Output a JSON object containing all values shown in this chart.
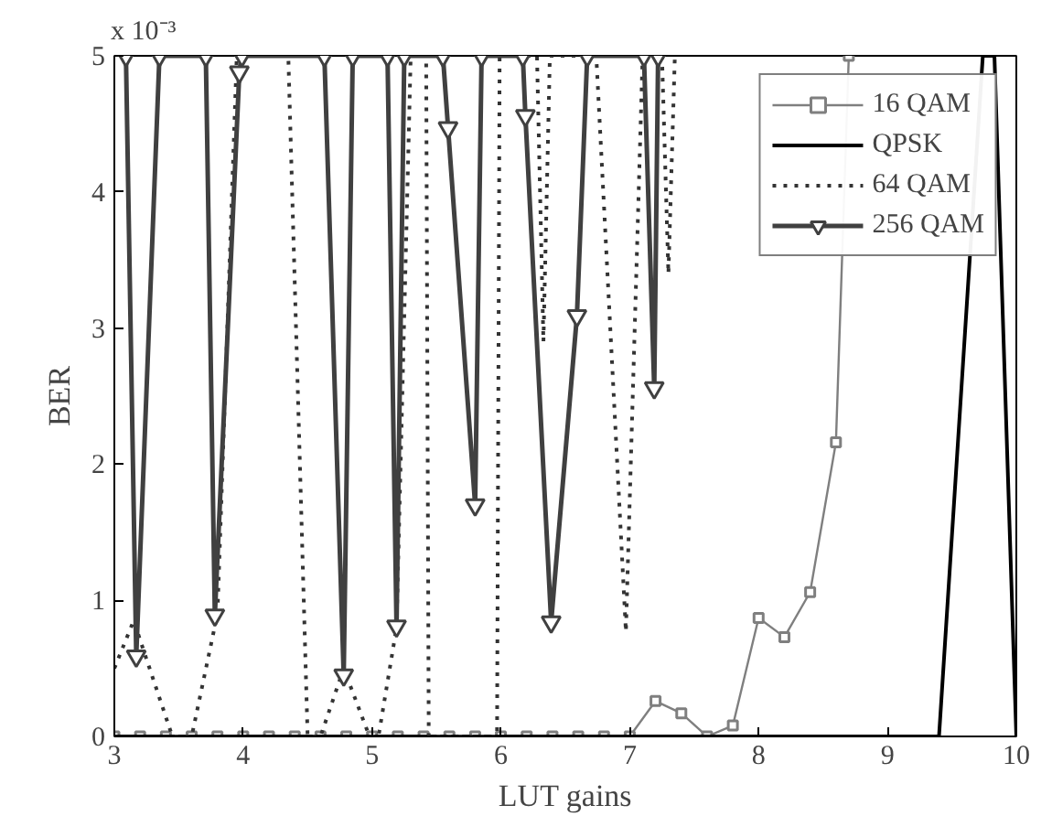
{
  "chart_data": {
    "type": "line",
    "xlabel": "LUT gains",
    "ylabel": "BER",
    "annotations": [
      "x 10⁻³"
    ],
    "xlim": [
      3,
      10
    ],
    "ylim": [
      0,
      5
    ],
    "xticks": [
      3,
      4,
      5,
      6,
      7,
      8,
      9,
      10
    ],
    "yticks": [
      0,
      1,
      2,
      3,
      4,
      5
    ],
    "grid": false,
    "legend": "top right",
    "series": [
      {
        "name": "16 QAM",
        "color": "#7f7f7f",
        "marker": "square",
        "line_style": "solid",
        "x": [
          3.0,
          3.2,
          3.4,
          3.6,
          3.8,
          4.0,
          4.2,
          4.4,
          4.6,
          4.8,
          5.0,
          5.2,
          5.4,
          5.6,
          5.8,
          6.0,
          6.2,
          6.4,
          6.6,
          6.8,
          7.0,
          7.2,
          7.4,
          7.6,
          7.8,
          8.0,
          8.2,
          8.4,
          8.6,
          8.7
        ],
        "values": [
          0,
          0,
          0,
          0,
          0,
          0,
          0,
          0,
          0,
          0,
          0,
          0,
          0,
          0,
          0,
          0,
          0,
          0,
          0,
          0,
          0,
          0.26,
          0.17,
          0,
          0.08,
          0.87,
          0.73,
          1.06,
          2.16,
          5
        ]
      },
      {
        "name": "QPSK",
        "color": "#000000",
        "marker": "none",
        "line_style": "solid",
        "x": [
          3.0,
          9.4,
          9.74,
          9.83,
          10.0
        ],
        "values": [
          0,
          0,
          5,
          5,
          0
        ]
      },
      {
        "name": "64 QAM",
        "color": "#333333",
        "marker": "none",
        "line_style": "dotted",
        "x": [
          3.0,
          3.15,
          3.45,
          3.6,
          3.8,
          3.95,
          4.35,
          4.5,
          4.6,
          4.78,
          4.98,
          5.05,
          5.19,
          5.3,
          5.42,
          5.44,
          5.97,
          5.99,
          6.28,
          6.33,
          6.38,
          6.74,
          6.97,
          7.1,
          7.25,
          7.3,
          7.35
        ],
        "values": [
          0.5,
          0.85,
          0,
          0,
          0.9,
          5,
          5,
          0,
          0,
          0.5,
          0,
          0,
          0.8,
          5,
          5,
          0,
          0,
          5,
          5,
          2.9,
          5,
          5,
          0.77,
          5,
          5,
          3.4,
          5
        ]
      },
      {
        "name": "256 QAM",
        "color": "#404040",
        "marker": "triangle",
        "line_style": "solid",
        "x": [
          3.09,
          3.17,
          3.35,
          3.71,
          3.78,
          3.97,
          3.99,
          4.63,
          4.78,
          4.85,
          5.12,
          5.19,
          5.25,
          5.55,
          5.59,
          5.8,
          5.85,
          6.17,
          6.19,
          6.39,
          6.59,
          6.67,
          7.11,
          7.19,
          7.22
        ],
        "values": [
          5,
          0.59,
          5,
          5,
          0.89,
          4.88,
          5,
          5,
          0.45,
          5,
          5,
          0.81,
          5,
          5,
          4.47,
          1.7,
          5,
          5,
          4.56,
          0.84,
          3.09,
          5,
          5,
          2.56,
          5
        ]
      }
    ]
  }
}
